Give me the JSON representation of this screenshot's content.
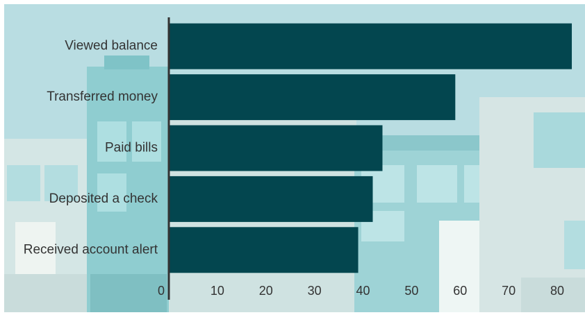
{
  "chart_data": {
    "type": "bar",
    "orientation": "horizontal",
    "categories": [
      "Viewed balance",
      "Transferred money",
      "Paid bills",
      "Deposited a check",
      "Received account alert"
    ],
    "values": [
      83,
      59,
      44,
      42,
      39
    ],
    "xlim": [
      0,
      85
    ],
    "xticks": [
      "0",
      "10",
      "20",
      "30",
      "40",
      "50",
      "60",
      "70",
      "80"
    ],
    "title": "",
    "xlabel": "",
    "ylabel": "",
    "grid": false,
    "legend": "none",
    "bar_color": "#03464f"
  }
}
